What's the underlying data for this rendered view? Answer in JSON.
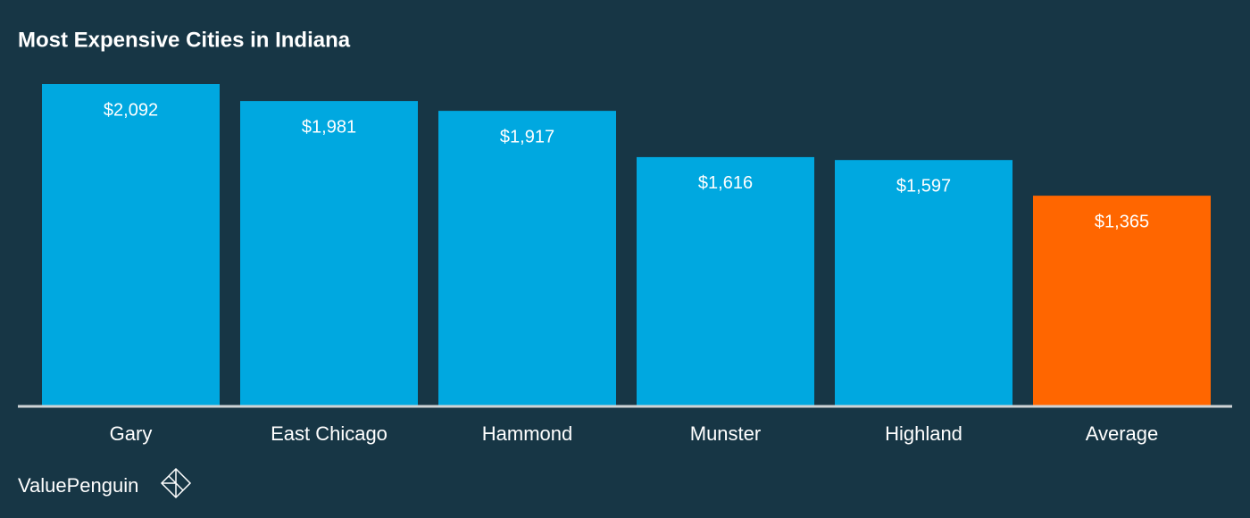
{
  "chart_data": {
    "type": "bar",
    "title": "Most Expensive Cities in Indiana",
    "categories": [
      "Gary",
      "East Chicago",
      "Hammond",
      "Munster",
      "Highland",
      "Average"
    ],
    "values": [
      2092,
      1981,
      1917,
      1616,
      1597,
      1365
    ],
    "value_labels": [
      "$2,092",
      "$1,981",
      "$1,917",
      "$1,616",
      "$1,597",
      "$1,365"
    ],
    "colors": [
      "#00a8e0",
      "#00a8e0",
      "#00a8e0",
      "#00a8e0",
      "#00a8e0",
      "#ff6600"
    ]
  },
  "footer": {
    "brand": "ValuePenguin"
  }
}
